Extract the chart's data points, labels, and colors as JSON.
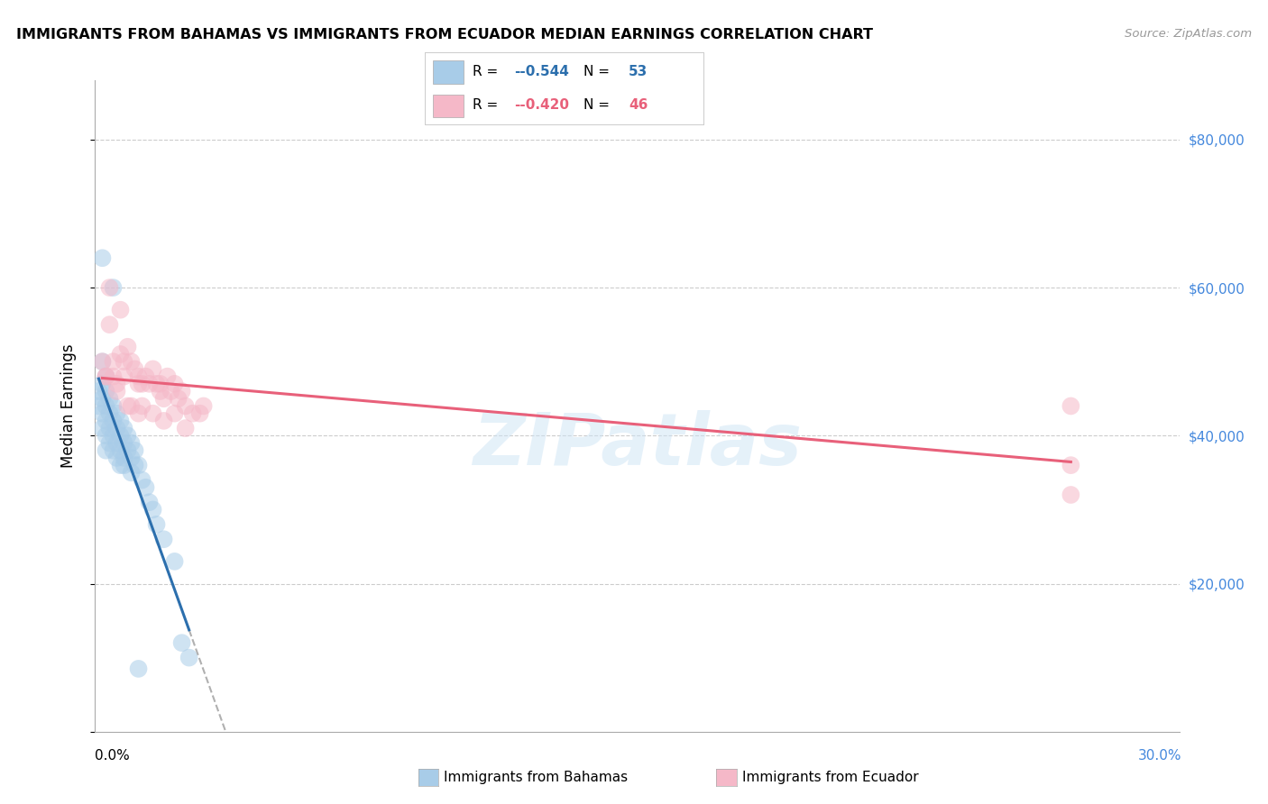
{
  "title": "IMMIGRANTS FROM BAHAMAS VS IMMIGRANTS FROM ECUADOR MEDIAN EARNINGS CORRELATION CHART",
  "source": "Source: ZipAtlas.com",
  "ylabel": "Median Earnings",
  "xlim": [
    0.0,
    0.3
  ],
  "ylim": [
    0,
    88000
  ],
  "legend_R1": "-0.544",
  "legend_N1": "53",
  "legend_R2": "-0.420",
  "legend_N2": "46",
  "color_blue": "#a8cce8",
  "color_pink": "#f5b8c8",
  "line_blue": "#2c6fad",
  "line_pink": "#e8607a",
  "watermark": "ZIPatlas",
  "bahamas_x": [
    0.001,
    0.001,
    0.002,
    0.002,
    0.002,
    0.002,
    0.002,
    0.003,
    0.003,
    0.003,
    0.003,
    0.003,
    0.003,
    0.004,
    0.004,
    0.004,
    0.004,
    0.005,
    0.005,
    0.005,
    0.005,
    0.006,
    0.006,
    0.006,
    0.006,
    0.007,
    0.007,
    0.007,
    0.007,
    0.008,
    0.008,
    0.008,
    0.009,
    0.009,
    0.01,
    0.01,
    0.01,
    0.011,
    0.011,
    0.012,
    0.013,
    0.014,
    0.015,
    0.016,
    0.017,
    0.019,
    0.022,
    0.024,
    0.026,
    0.002,
    0.005,
    0.008,
    0.012
  ],
  "bahamas_y": [
    46000,
    44000,
    50000,
    47000,
    45000,
    43000,
    41000,
    48000,
    46000,
    44000,
    42000,
    40000,
    38000,
    45000,
    43000,
    41000,
    39000,
    44000,
    42000,
    40000,
    38000,
    43000,
    41000,
    39000,
    37000,
    42000,
    40000,
    38000,
    36000,
    41000,
    39000,
    37000,
    40000,
    38000,
    39000,
    37000,
    35000,
    38000,
    36000,
    36000,
    34000,
    33000,
    31000,
    30000,
    28000,
    26000,
    23000,
    12000,
    10000,
    64000,
    60000,
    36000,
    8500
  ],
  "ecuador_x": [
    0.002,
    0.003,
    0.004,
    0.005,
    0.005,
    0.006,
    0.007,
    0.008,
    0.008,
    0.009,
    0.01,
    0.011,
    0.012,
    0.012,
    0.013,
    0.014,
    0.015,
    0.016,
    0.017,
    0.018,
    0.018,
    0.019,
    0.02,
    0.021,
    0.022,
    0.023,
    0.024,
    0.025,
    0.027,
    0.029,
    0.004,
    0.007,
    0.01,
    0.013,
    0.016,
    0.019,
    0.022,
    0.025,
    0.003,
    0.006,
    0.009,
    0.012,
    0.03,
    0.27,
    0.27,
    0.27
  ],
  "ecuador_y": [
    50000,
    48000,
    55000,
    50000,
    48000,
    47000,
    51000,
    50000,
    48000,
    52000,
    50000,
    49000,
    48000,
    47000,
    47000,
    48000,
    47000,
    49000,
    47000,
    46000,
    47000,
    45000,
    48000,
    46000,
    47000,
    45000,
    46000,
    44000,
    43000,
    43000,
    60000,
    57000,
    44000,
    44000,
    43000,
    42000,
    43000,
    41000,
    48000,
    46000,
    44000,
    43000,
    44000,
    44000,
    36000,
    32000
  ]
}
